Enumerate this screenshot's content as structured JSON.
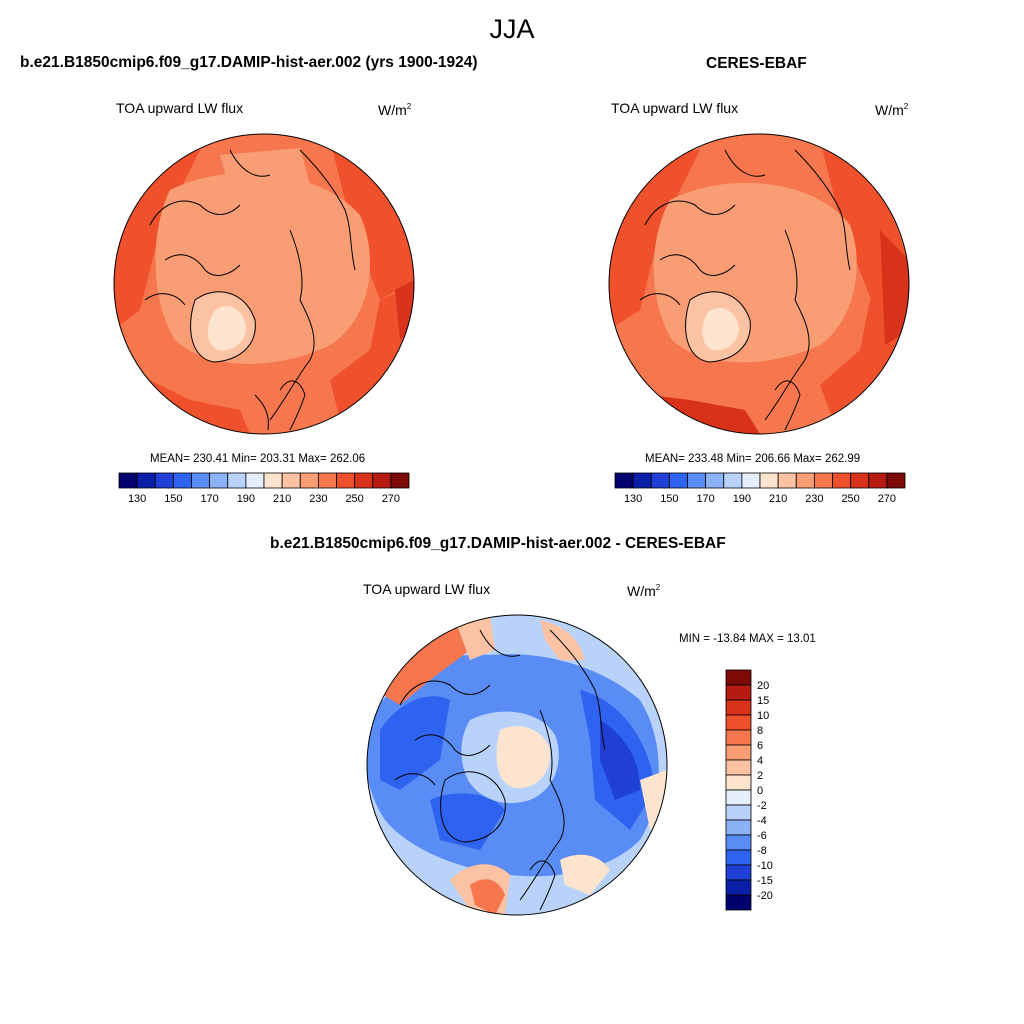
{
  "suptitle": "JJA",
  "panels": [
    {
      "title": "b.e21.B1850cmip6.f09_g17.DAMIP-hist-aer.002 (yrs 1900-1924)",
      "variable": "TOA upward LW flux",
      "units_base": "W/m",
      "units_exp": "2",
      "stats": "MEAN= 230.41   Min= 203.31   Max= 262.06",
      "stats_values": {
        "mean": 230.41,
        "min": 203.31,
        "max": 262.06
      }
    },
    {
      "title": "CERES-EBAF",
      "variable": "TOA upward LW flux",
      "units_base": "W/m",
      "units_exp": "2",
      "stats": "MEAN= 233.48   Min= 206.66   Max= 262.99",
      "stats_values": {
        "mean": 233.48,
        "min": 206.66,
        "max": 262.99
      }
    },
    {
      "title": "b.e21.B1850cmip6.f09_g17.DAMIP-hist-aer.002 - CERES-EBAF",
      "variable": "TOA upward LW flux",
      "units_base": "W/m",
      "units_exp": "2",
      "stats": "MIN = -13.84 MAX =  13.01",
      "stats_values": {
        "min": -13.84,
        "max": 13.01
      }
    }
  ],
  "colorbar_abs": {
    "tick_labels": [
      "130",
      "150",
      "170",
      "190",
      "210",
      "230",
      "250",
      "270"
    ],
    "colors": [
      "#00006e",
      "#0a1fa8",
      "#1f3fd6",
      "#2e63f0",
      "#5a8cf5",
      "#8bb1f7",
      "#b9d2fa",
      "#e5eefb",
      "#fde4cf",
      "#fbc3a3",
      "#f99d75",
      "#f6774e",
      "#ef512c",
      "#d8321a",
      "#b51b10",
      "#7d0a05"
    ]
  },
  "colorbar_diff": {
    "tick_labels": [
      "20",
      "15",
      "10",
      "8",
      "6",
      "4",
      "2",
      "0",
      "-2",
      "-4",
      "-6",
      "-8",
      "-10",
      "-15",
      "-20"
    ],
    "colors": [
      "#7d0a05",
      "#b51b10",
      "#d8321a",
      "#ef512c",
      "#f6774e",
      "#f99d75",
      "#fbc3a3",
      "#fde4cf",
      "#e5eefb",
      "#b9d2fa",
      "#8bb1f7",
      "#5a8cf5",
      "#2e63f0",
      "#1f3fd6",
      "#0a1fa8",
      "#00006e"
    ]
  },
  "map_colors": {
    "abs_base": "#f6774e",
    "abs_band_warm": "#ef512c",
    "abs_band_hot": "#d8321a",
    "abs_pale": "#f99d75",
    "abs_greenland": "#fbc3a3",
    "abs_greenland_core": "#fde4cf",
    "diff_base": "#b9d2fa",
    "diff_neg_mid": "#5a8cf5",
    "diff_neg_strong": "#2e63f0",
    "diff_neg_max": "#1f3fd6",
    "diff_pos_weak": "#fde4cf",
    "diff_pos_mid": "#fbc3a3",
    "diff_pos_strong": "#f6774e"
  }
}
